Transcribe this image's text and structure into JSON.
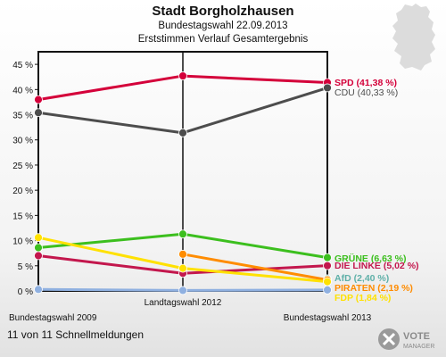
{
  "header": {
    "title": "Stadt Borgholzhausen",
    "subtitle1": "Bundestagswahl 22.09.2013",
    "subtitle2": "Erststimmen Verlauf Gesamtergebnis"
  },
  "footer": {
    "status": "11 von 11 Schnellmeldungen",
    "logo_line1": "VOTE",
    "logo_line2": "MANAGER"
  },
  "colors": {
    "SPD": "#d4003a",
    "CDU": "#4d4d4d",
    "GRUENE": "#3cbf1e",
    "DIE_LINKE": "#c3174d",
    "AfD": "#5fb0a8",
    "PIRATEN": "#ff8c00",
    "FDP": "#ffe100",
    "OTHER": "#8fb0e0"
  },
  "chart_data": {
    "type": "line",
    "categories": [
      "Bundestagswahl 2009",
      "Landtagswahl 2012",
      "Bundestagswahl 2013"
    ],
    "ylim": [
      0,
      47.5
    ],
    "yticks": [
      0,
      5,
      10,
      15,
      20,
      25,
      30,
      35,
      40,
      45
    ],
    "tick_format": "{v} %",
    "grid": false,
    "series": [
      {
        "name": "SPD",
        "label": "SPD (41,38 %)",
        "color": "#d4003a",
        "values": [
          38.0,
          42.7,
          41.38
        ],
        "bold": true
      },
      {
        "name": "CDU",
        "label": "CDU (40,33 %)",
        "color": "#4d4d4d",
        "values": [
          35.4,
          31.4,
          40.33
        ],
        "bold": false
      },
      {
        "name": "GRÜNE",
        "label": "GRÜNE (6,63 %)",
        "color": "#3cbf1e",
        "values": [
          8.6,
          11.3,
          6.63
        ],
        "bold": true
      },
      {
        "name": "DIE LINKE",
        "label": "DIE LINKE (5,02 %)",
        "color": "#c3174d",
        "values": [
          7.0,
          3.5,
          5.02
        ],
        "bold": true
      },
      {
        "name": "AfD",
        "label": "AfD (2,40 %)",
        "color": "#5fb0a8",
        "values": [
          null,
          null,
          2.4
        ],
        "bold": true
      },
      {
        "name": "PIRATEN",
        "label": "PIRATEN (2,19 %)",
        "color": "#ff8c00",
        "values": [
          null,
          7.3,
          2.19
        ],
        "bold": true
      },
      {
        "name": "FDP",
        "label": "FDP (1,84 %)",
        "color": "#ffe100",
        "values": [
          10.6,
          4.5,
          1.84
        ],
        "bold": true
      },
      {
        "name": "Andere",
        "label": "",
        "color": "#8fb0e0",
        "values": [
          0.3,
          0.1,
          0.2
        ],
        "bold": false
      }
    ]
  }
}
